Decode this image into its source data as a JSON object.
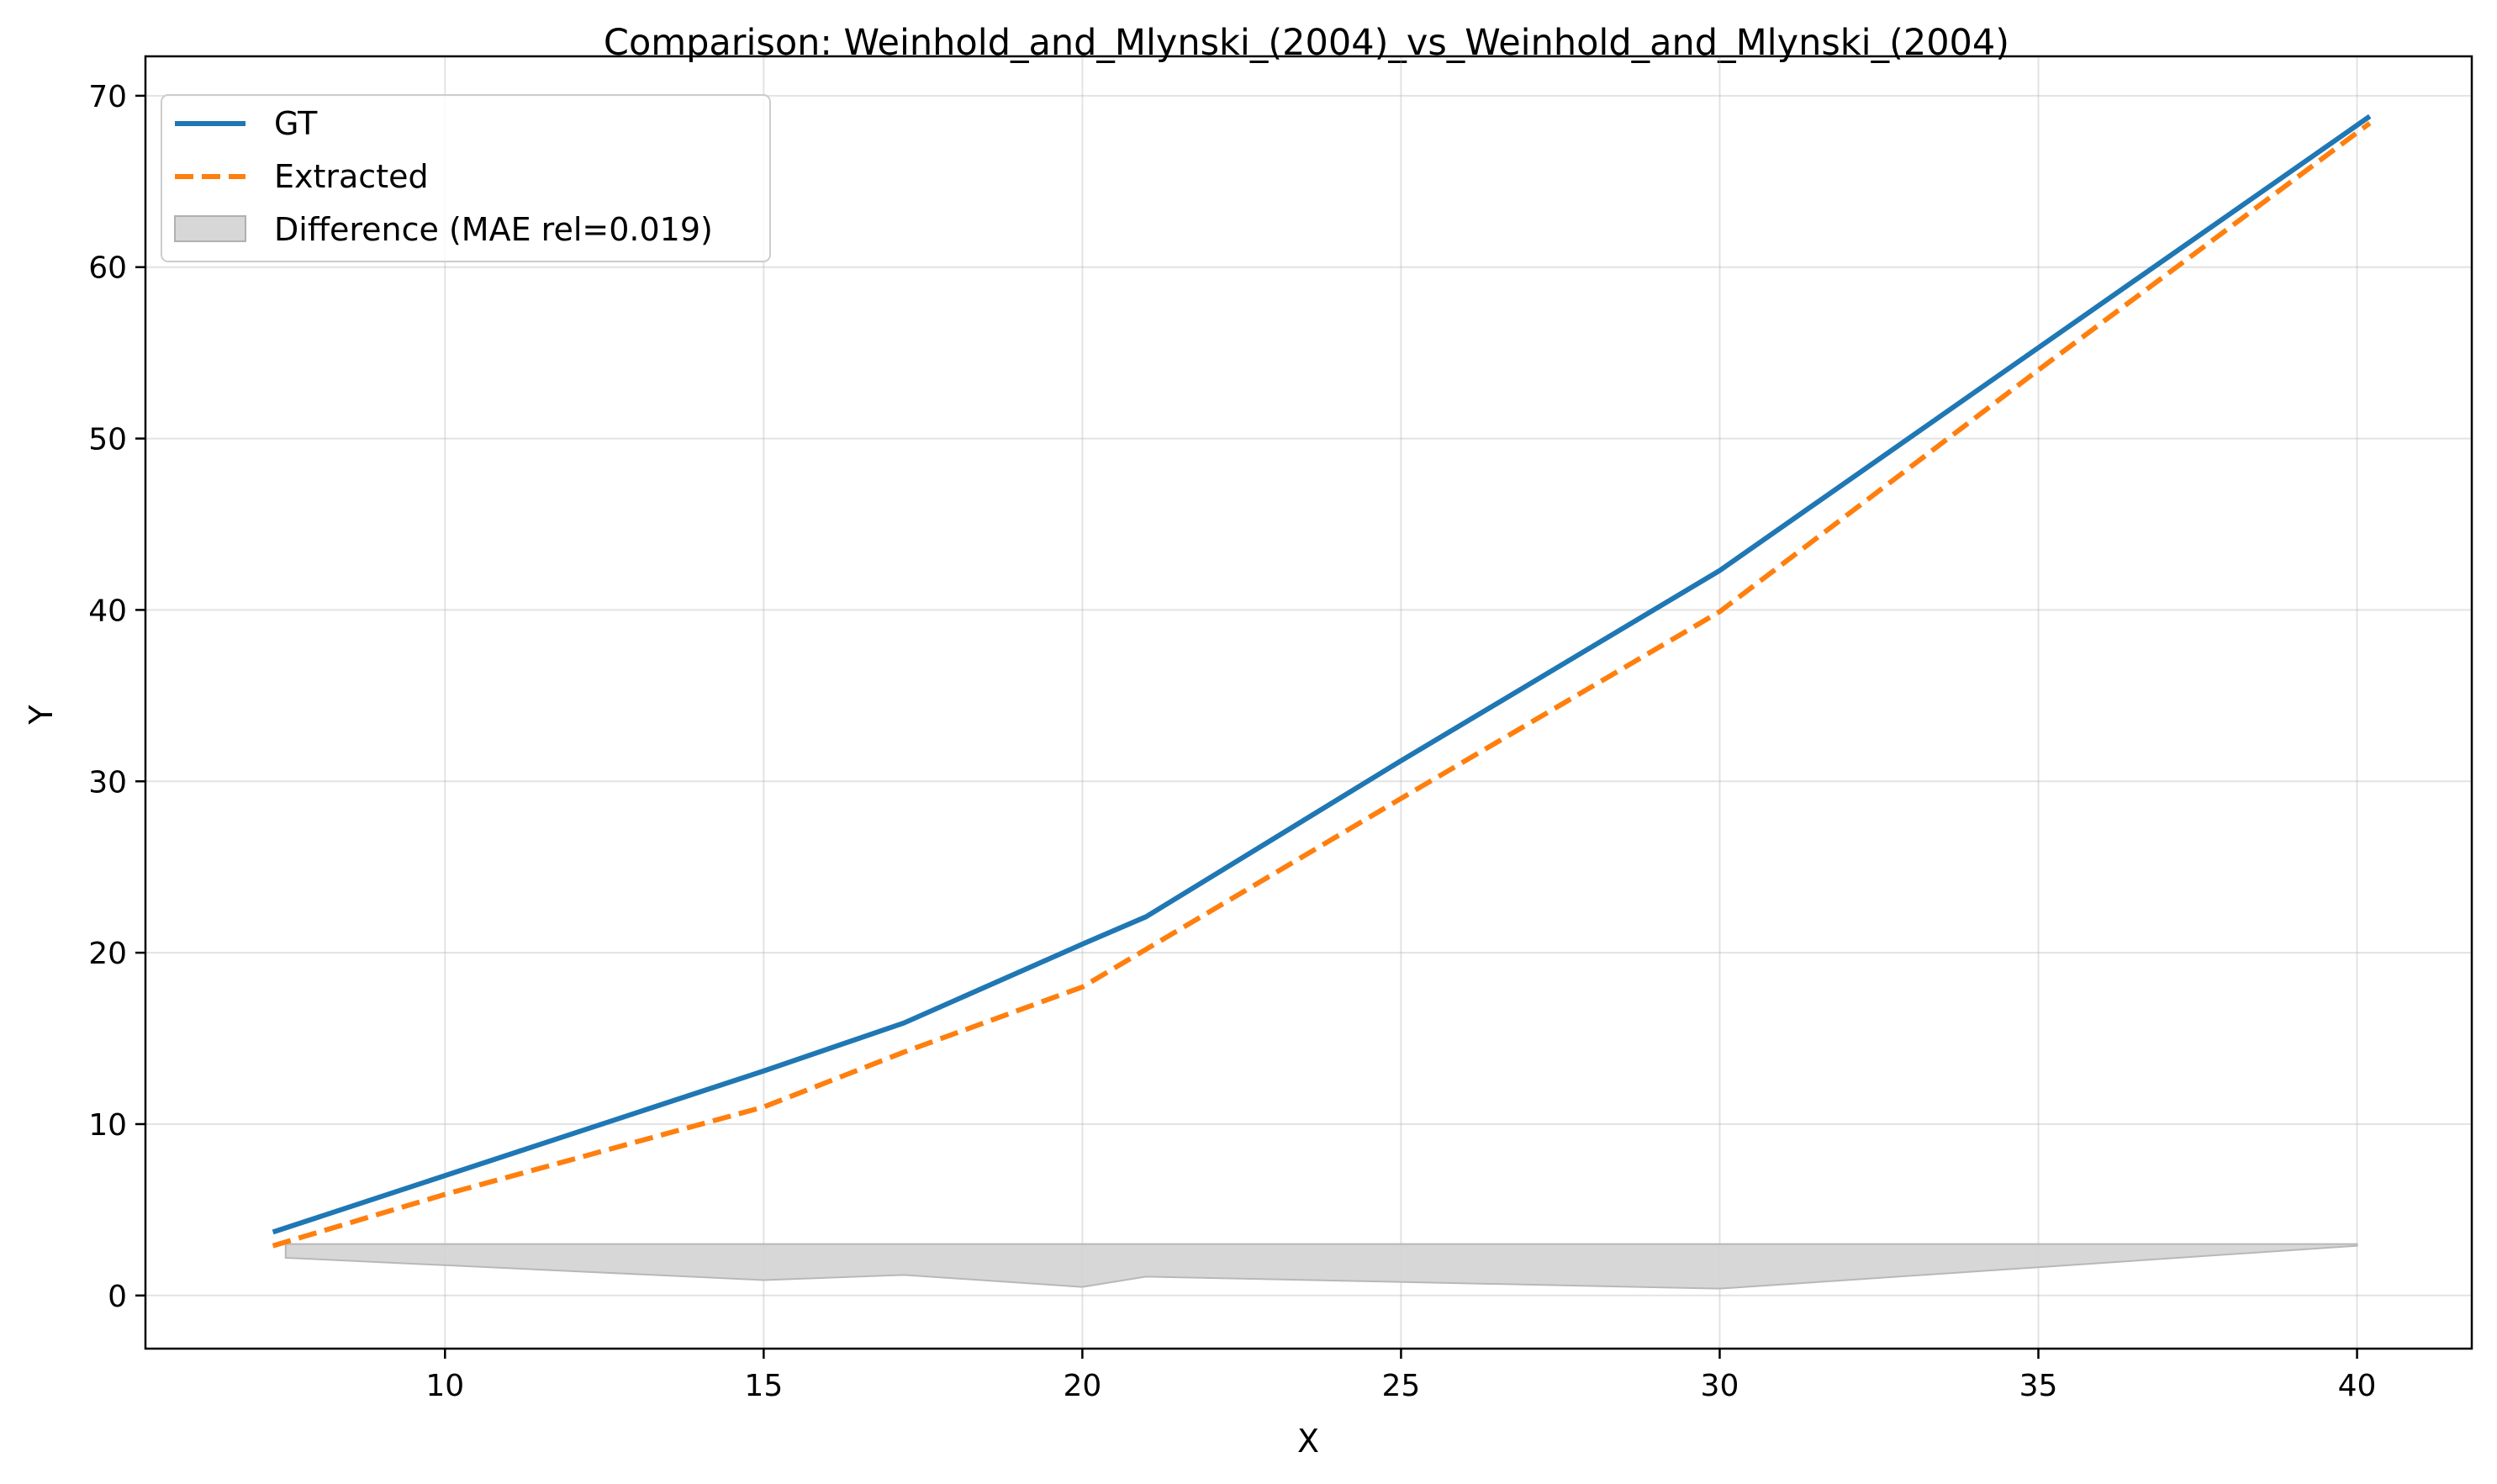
{
  "chart_data": {
    "type": "line",
    "title": "Comparison: Weinhold_and_Mlynski_(2004)_vs_Weinhold_and_Mlynski_(2004)",
    "xlabel": "X",
    "ylabel": "Y",
    "xlim": [
      5.3,
      41.8
    ],
    "ylim": [
      -3.1,
      72.3
    ],
    "xticks": [
      10,
      15,
      20,
      25,
      30,
      35,
      40
    ],
    "yticks": [
      0,
      10,
      20,
      30,
      40,
      50,
      60,
      70
    ],
    "grid": true,
    "legend_position": "top-left",
    "series": [
      {
        "name": "GT",
        "color": "#1f77b4",
        "style": "solid",
        "x": [
          7.3,
          15.0,
          17.2,
          20.0,
          21.0,
          25.0,
          30.0,
          35.0,
          40.2
        ],
        "y": [
          3.7,
          13.1,
          15.9,
          20.5,
          22.1,
          31.2,
          42.3,
          55.3,
          68.8
        ]
      },
      {
        "name": "Extracted",
        "color": "#ff7f0e",
        "style": "dashed",
        "x": [
          7.3,
          10.0,
          15.0,
          17.2,
          20.0,
          21.0,
          25.0,
          30.0,
          35.0,
          40.2
        ],
        "y": [
          2.9,
          5.9,
          11.0,
          14.2,
          18.0,
          20.2,
          29.0,
          39.9,
          54.0,
          68.4
        ]
      }
    ],
    "difference": {
      "name": "Difference (MAE rel=0.019)",
      "color": "#d3d3d3",
      "baseline": 3.0,
      "x": [
        7.5,
        15.0,
        17.2,
        20.0,
        21.0,
        30.0,
        40.0
      ],
      "y": [
        2.2,
        0.9,
        1.2,
        0.5,
        1.1,
        0.4,
        2.9
      ]
    }
  }
}
